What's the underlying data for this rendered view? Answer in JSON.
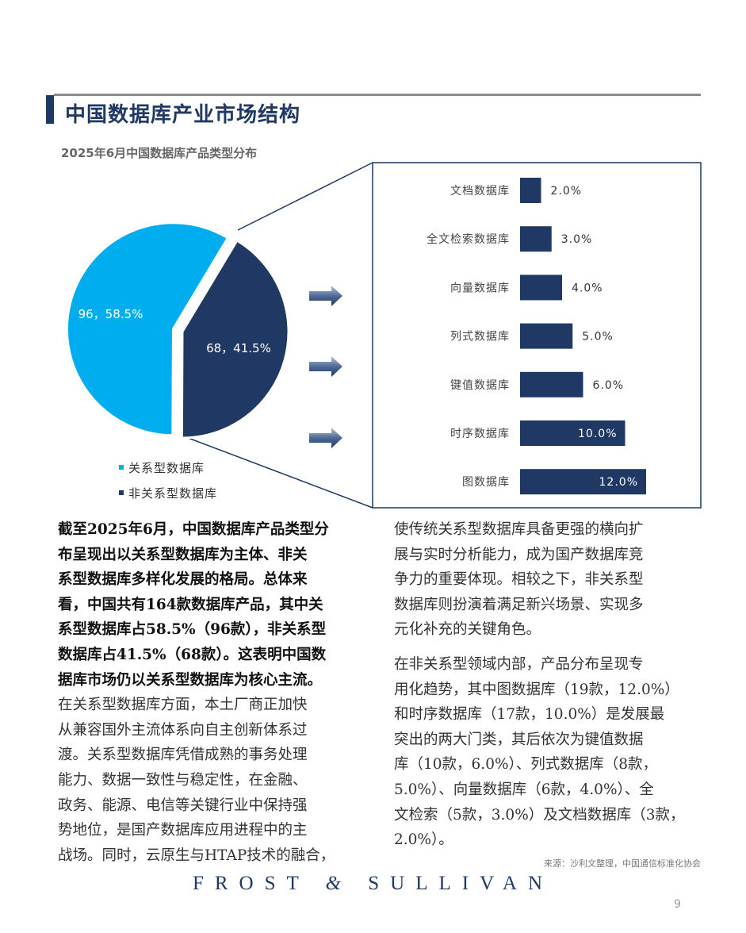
{
  "header": {
    "title": "中国数据库产业市场结构"
  },
  "figure": {
    "subtitle": "2025年6月中国数据库产品类型分布"
  },
  "colors": {
    "relational": "#00AEEF",
    "non_relational": "#1F3864",
    "accent": "#1F3864"
  },
  "chart_data": [
    {
      "type": "pie",
      "categories": [
        "关系型数据库",
        "非关系型数据库"
      ],
      "values": [
        96,
        68
      ],
      "percents": [
        58.5,
        41.5
      ],
      "data_labels": [
        "96，58.5%",
        "68，41.5%"
      ],
      "legend": [
        "关系型数据库",
        "非关系型数据库"
      ],
      "legend_placement": "bottom"
    },
    {
      "type": "bar",
      "orientation": "horizontal",
      "categories": [
        "文档数据库",
        "全文检索数据库",
        "向量数据库",
        "列式数据库",
        "键值数据库",
        "时序数据库",
        "图数据库"
      ],
      "values": [
        2.0,
        3.0,
        4.0,
        5.0,
        6.0,
        10.0,
        12.0
      ],
      "data_labels": [
        "2.0%",
        "3.0%",
        "4.0%",
        "5.0%",
        "6.0%",
        "10.0%",
        "12.0%"
      ],
      "grid": false
    }
  ],
  "body": {
    "left_bold": [
      "截至2025年6月，中国数据库产品类型分",
      "布呈现出以关系型数据库为主体、非关",
      "系型数据库多样化发展的格局。总体来",
      "看，中国共有164款数据库产品，其中关",
      "系型数据库占58.5%（96款），非关系型",
      "数据库占41.5%（68款）。这表明中国数",
      "据库市场仍以关系型数据库为核心主流。"
    ],
    "left_normal": [
      "在关系型数据库方面，本土厂商正加快",
      "从兼容国外主流体系向自主创新体系过",
      "渡。关系型数据库凭借成熟的事务处理",
      "能力、数据一致性与稳定性，在金融、",
      "政务、能源、电信等关键行业中保持强",
      "势地位，是国产数据库应用进程中的主",
      "战场。同时，云原生与HTAP技术的融合，"
    ],
    "right_p1": [
      "使传统关系型数据库具备更强的横向扩",
      "展与实时分析能力，成为国产数据库竞",
      "争力的重要体现。相较之下，非关系型",
      "数据库则扮演着满足新兴场景、实现多",
      "元化补充的关键角色。"
    ],
    "right_p2": [
      "在非关系型领域内部，产品分布呈现专",
      "用化趋势，其中图数据库（19款，12.0%）",
      "和时序数据库（17款，10.0%）是发展最",
      "突出的两大门类，其后依次为键值数据",
      "库（10款，6.0%）、列式数据库（8款，",
      "5.0%）、向量数据库（6款，4.0%）、全",
      "文检索（5款，3.0%）及文档数据库（3款，",
      "2.0%）。"
    ]
  },
  "footer": {
    "source": "来源：沙利文整理，中国通信标准化协会",
    "logo": "FROST & SULLIVAN",
    "page_number": "9"
  }
}
